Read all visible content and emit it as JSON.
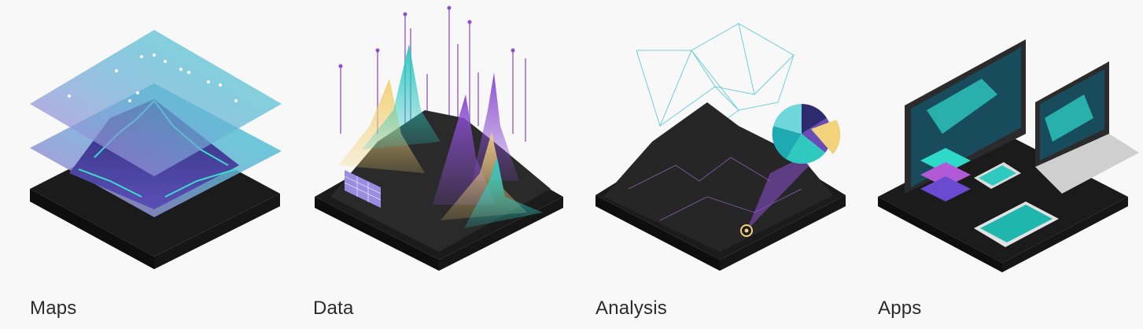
{
  "cards": [
    {
      "label": "Maps"
    },
    {
      "label": "Data"
    },
    {
      "label": "Analysis"
    },
    {
      "label": "Apps"
    }
  ],
  "icons": [
    "layers-map-illustration",
    "data-peaks-illustration",
    "analysis-network-illustration",
    "devices-apps-illustration"
  ],
  "colors": {
    "background": "#f8f8f8",
    "terrain": "#1a1a1a",
    "teal": "#2fc9c0",
    "purple": "#8c4fd1",
    "gold": "#f2d27a",
    "text": "#2b2b2b"
  }
}
